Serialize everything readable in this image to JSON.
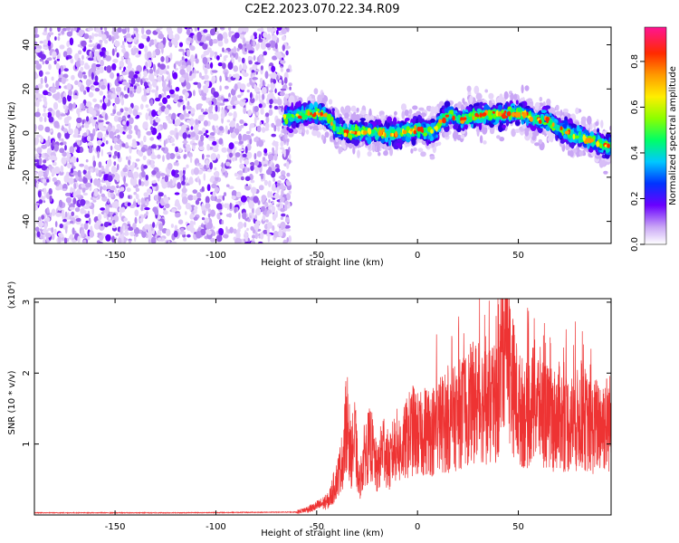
{
  "figure_title": "C2E2.2023.070.22.34.R09",
  "chart_data": [
    {
      "type": "heatmap",
      "xlabel": "Height of straight line (km)",
      "ylabel": "Frequency (Hz)",
      "xlim": [
        -190,
        96
      ],
      "ylim": [
        -50,
        48
      ],
      "xticks": [
        -150,
        -100,
        -50,
        0,
        50
      ],
      "xtick_labels": [
        "-150",
        "-100",
        "-50",
        "0",
        "50"
      ],
      "yticks": [
        40,
        20,
        0,
        -20,
        -40
      ],
      "ytick_labels": [
        "40",
        "20",
        "0",
        "-20",
        "-40"
      ],
      "noise_region_x": [
        -190,
        -63
      ],
      "signal_track": {
        "x": [
          -66,
          -58,
          -52,
          -46,
          -40,
          -34,
          -28,
          -22,
          -16,
          -10,
          -4,
          2,
          8,
          12,
          16,
          22,
          28,
          34,
          40,
          46,
          52,
          58,
          64,
          70,
          76,
          82,
          88,
          94
        ],
        "freq_hz": [
          7,
          8,
          9,
          8,
          2,
          0,
          1,
          0,
          0,
          0,
          1,
          2,
          0,
          6,
          8,
          6,
          8,
          8,
          8,
          9,
          9,
          6,
          6,
          2,
          0,
          -2,
          -4,
          -6
        ]
      },
      "colorbar": {
        "label": "Normalized spectral amplitude",
        "range": [
          0.0,
          0.95
        ],
        "ticks": [
          0.0,
          0.2,
          0.4,
          0.6,
          0.8
        ],
        "tick_labels": [
          "0.0",
          "0.2",
          "0.4",
          "0.6",
          "0.8"
        ]
      }
    },
    {
      "type": "line",
      "xlabel": "Height of straight line (km)",
      "ylabel": "SNR (10 * v/v)",
      "scale_label": "(x10⁴)",
      "xlim": [
        -190,
        96
      ],
      "ylim": [
        0,
        3.05
      ],
      "xticks": [
        -150,
        -100,
        -50,
        0,
        50
      ],
      "xtick_labels": [
        "-150",
        "-100",
        "-50",
        "0",
        "50"
      ],
      "yticks": [
        1,
        2,
        3
      ],
      "ytick_labels": [
        "1",
        "2",
        "3"
      ],
      "series": [
        {
          "name": "SNR",
          "color": "#ee3333",
          "x": [
            -190,
            -120,
            -60,
            -52,
            -48,
            -44,
            -40,
            -37,
            -35,
            -33,
            -31,
            -29,
            -26,
            -23,
            -20,
            -17,
            -14,
            -11,
            -8,
            -5,
            -2,
            1,
            4,
            8,
            12,
            16,
            20,
            24,
            28,
            32,
            36,
            40,
            42,
            44,
            46,
            50,
            54,
            58,
            62,
            66,
            70,
            74,
            78,
            82,
            86,
            90,
            96
          ],
          "values": [
            0.03,
            0.03,
            0.04,
            0.1,
            0.15,
            0.2,
            0.5,
            0.8,
            1.4,
            0.8,
            1.1,
            0.4,
            0.9,
            1.0,
            0.6,
            1.0,
            0.7,
            1.0,
            0.9,
            1.1,
            1.2,
            1.1,
            1.2,
            1.2,
            1.3,
            1.3,
            1.4,
            1.5,
            1.6,
            1.6,
            1.5,
            1.6,
            2.4,
            3.0,
            2.0,
            1.5,
            1.4,
            1.6,
            1.5,
            1.3,
            1.4,
            1.3,
            1.3,
            1.4,
            1.2,
            1.3,
            1.3
          ]
        }
      ]
    }
  ]
}
